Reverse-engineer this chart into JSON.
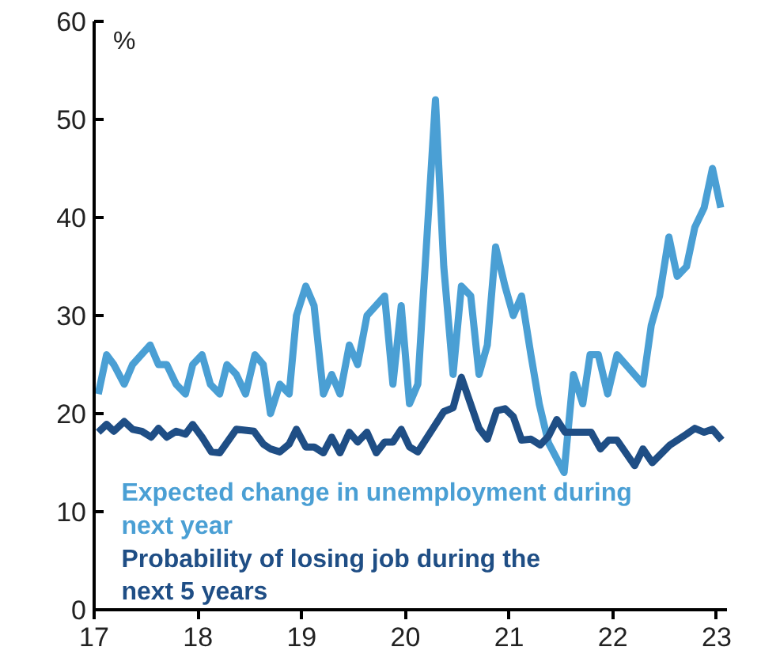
{
  "chart_data": {
    "type": "line",
    "ylabel": "%",
    "xlim": [
      17,
      23.1
    ],
    "ylim": [
      0,
      60
    ],
    "xticks": [
      17,
      18,
      19,
      20,
      21,
      22,
      23
    ],
    "yticks": [
      0,
      10,
      20,
      30,
      40,
      50,
      60
    ],
    "grid": false,
    "marker": "none",
    "line_style": "solid",
    "series": [
      {
        "name": "Expected change in unemployment during next year",
        "color": "#4a9fd4",
        "x": [
          17.04,
          17.12,
          17.19,
          17.29,
          17.37,
          17.54,
          17.62,
          17.7,
          17.79,
          17.88,
          17.95,
          18.04,
          18.12,
          18.21,
          18.28,
          18.37,
          18.46,
          18.55,
          18.63,
          18.7,
          18.79,
          18.88,
          18.95,
          19.04,
          19.12,
          19.21,
          19.29,
          19.37,
          19.46,
          19.54,
          19.63,
          19.8,
          19.88,
          19.96,
          20.04,
          20.12,
          20.29,
          20.37,
          20.46,
          20.54,
          20.63,
          20.71,
          20.79,
          20.87,
          20.96,
          21.04,
          21.12,
          21.21,
          21.29,
          21.38,
          21.53,
          21.62,
          21.71,
          21.78,
          21.86,
          21.95,
          22.04,
          22.29,
          22.37,
          22.45,
          22.54,
          22.62,
          22.71,
          22.79,
          22.88,
          22.96,
          23.04
        ],
        "values": [
          22,
          26,
          25,
          23,
          25,
          27,
          25,
          25,
          23,
          22,
          25,
          26,
          23,
          22,
          25,
          24,
          22,
          26,
          25,
          20,
          23,
          22,
          30,
          33,
          31,
          22,
          24,
          22,
          27,
          25,
          30,
          32,
          23,
          31,
          21,
          23,
          52,
          35,
          24,
          33,
          32,
          24,
          27,
          37,
          33,
          30,
          32,
          26,
          21,
          17,
          14,
          24,
          21,
          26,
          26,
          22,
          26,
          23,
          29,
          32,
          38,
          34,
          35,
          39,
          41,
          45,
          41
        ]
      },
      {
        "name": "Probability of losing job during the next 5 years",
        "color": "#1f4e85",
        "x": [
          17.04,
          17.12,
          17.19,
          17.29,
          17.37,
          17.46,
          17.55,
          17.62,
          17.7,
          17.79,
          17.88,
          17.95,
          18.04,
          18.13,
          18.21,
          18.37,
          18.54,
          18.63,
          18.7,
          18.79,
          18.88,
          18.95,
          19.04,
          19.12,
          19.21,
          19.29,
          19.37,
          19.46,
          19.54,
          19.63,
          19.72,
          19.8,
          19.88,
          19.96,
          20.04,
          20.12,
          20.37,
          20.46,
          20.54,
          20.71,
          20.79,
          20.88,
          20.96,
          21.04,
          21.12,
          21.21,
          21.3,
          21.38,
          21.46,
          21.54,
          21.79,
          21.88,
          21.96,
          22.04,
          22.21,
          22.29,
          22.38,
          22.55,
          22.71,
          22.79,
          22.88,
          22.96,
          23.05
        ],
        "values": [
          18.1,
          18.9,
          18.2,
          19.2,
          18.4,
          18.2,
          17.6,
          18.5,
          17.6,
          18.2,
          17.9,
          18.9,
          17.6,
          16.1,
          16,
          18.4,
          18.2,
          16.9,
          16.4,
          16.1,
          16.9,
          18.4,
          16.6,
          16.6,
          16,
          17.6,
          16,
          18.1,
          17.1,
          18.1,
          16,
          17.1,
          17.1,
          18.4,
          16.6,
          16.1,
          20.2,
          20.6,
          23.7,
          18.5,
          17.4,
          20.3,
          20.5,
          19.7,
          17.3,
          17.4,
          16.8,
          17.7,
          19.4,
          18.1,
          18.1,
          16.4,
          17.3,
          17.3,
          14.7,
          16.4,
          15,
          16.8,
          17.9,
          18.5,
          18.1,
          18.4,
          17.3
        ]
      }
    ]
  }
}
